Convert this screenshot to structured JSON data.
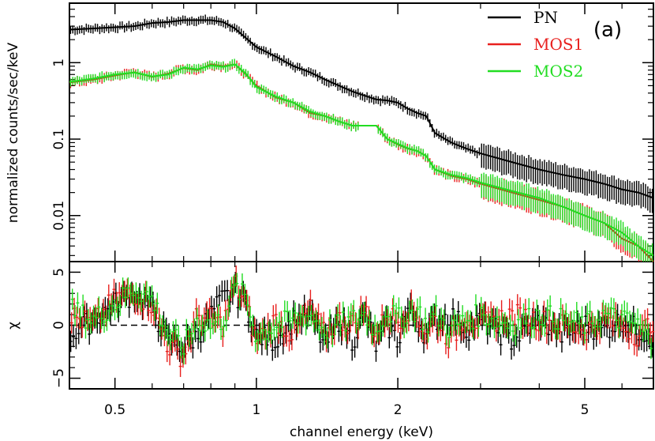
{
  "chart_data": [
    {
      "type": "line",
      "panel_label": "(a)",
      "xlabel": "channel energy (keV)",
      "ylabel": "normalized counts/sec/keV",
      "xscale": "log",
      "yscale": "log",
      "xlim": [
        0.4,
        7.0
      ],
      "ylim": [
        0.0025,
        6.0
      ],
      "yticks": [
        {
          "value": 1,
          "label": "1"
        },
        {
          "value": 0.1,
          "label": "0.1"
        },
        {
          "value": 0.01,
          "label": "0.01"
        }
      ],
      "legend": {
        "position": "top-right",
        "entries": [
          {
            "label": "PN",
            "color": "#000000"
          },
          {
            "label": "MOS1",
            "color": "#e8201e"
          },
          {
            "label": "MOS2",
            "color": "#22dd22"
          }
        ]
      },
      "series": [
        {
          "name": "PN",
          "color": "#000000",
          "x": [
            0.4,
            0.45,
            0.5,
            0.55,
            0.6,
            0.65,
            0.7,
            0.75,
            0.8,
            0.85,
            0.9,
            0.95,
            1.0,
            1.1,
            1.2,
            1.3,
            1.4,
            1.5,
            1.6,
            1.7,
            1.8,
            1.9,
            2.0,
            2.1,
            2.2,
            2.3,
            2.4,
            2.6,
            2.8,
            3.0,
            3.5,
            4.0,
            4.5,
            5.0,
            5.5,
            6.0,
            6.5,
            7.0
          ],
          "y": [
            2.7,
            2.8,
            2.9,
            3.0,
            3.3,
            3.4,
            3.6,
            3.6,
            3.6,
            3.4,
            2.8,
            2.1,
            1.6,
            1.2,
            0.9,
            0.75,
            0.6,
            0.5,
            0.42,
            0.37,
            0.33,
            0.32,
            0.3,
            0.25,
            0.22,
            0.2,
            0.12,
            0.09,
            0.075,
            0.065,
            0.05,
            0.04,
            0.034,
            0.03,
            0.026,
            0.022,
            0.02,
            0.017
          ]
        },
        {
          "name": "MOS1",
          "color": "#e8201e",
          "x": [
            0.4,
            0.45,
            0.5,
            0.55,
            0.6,
            0.65,
            0.7,
            0.75,
            0.8,
            0.85,
            0.9,
            0.95,
            1.0,
            1.1,
            1.2,
            1.3,
            1.4,
            1.5,
            1.6,
            1.7,
            1.8,
            1.9,
            2.0,
            2.1,
            2.2,
            2.3,
            2.4,
            2.6,
            2.8,
            3.0,
            3.5,
            4.0,
            4.5,
            5.0,
            5.5,
            6.0,
            6.5,
            7.0
          ],
          "y": [
            0.55,
            0.6,
            0.68,
            0.75,
            0.65,
            0.72,
            0.85,
            0.8,
            0.95,
            0.9,
            0.95,
            0.7,
            0.5,
            0.35,
            0.3,
            0.22,
            0.2,
            0.17,
            0.15,
            0.15,
            0.15,
            0.1,
            0.085,
            0.075,
            0.07,
            0.06,
            0.04,
            0.033,
            0.03,
            0.026,
            0.02,
            0.016,
            0.013,
            0.01,
            0.008,
            0.005,
            0.004,
            0.0025
          ]
        },
        {
          "name": "MOS2",
          "color": "#22dd22",
          "x": [
            0.4,
            0.45,
            0.5,
            0.55,
            0.6,
            0.65,
            0.7,
            0.75,
            0.8,
            0.85,
            0.9,
            0.95,
            1.0,
            1.1,
            1.2,
            1.3,
            1.4,
            1.5,
            1.6,
            1.7,
            1.8,
            1.9,
            2.0,
            2.1,
            2.2,
            2.3,
            2.4,
            2.6,
            2.8,
            3.0,
            3.5,
            4.0,
            4.5,
            5.0,
            5.5,
            6.0,
            6.5,
            7.0
          ],
          "y": [
            0.56,
            0.62,
            0.7,
            0.74,
            0.66,
            0.7,
            0.86,
            0.82,
            0.92,
            0.88,
            0.95,
            0.72,
            0.48,
            0.36,
            0.3,
            0.23,
            0.2,
            0.17,
            0.15,
            0.15,
            0.15,
            0.1,
            0.087,
            0.076,
            0.07,
            0.06,
            0.04,
            0.034,
            0.031,
            0.027,
            0.021,
            0.017,
            0.013,
            0.01,
            0.008,
            0.006,
            0.004,
            0.003
          ]
        }
      ]
    },
    {
      "type": "line",
      "ylabel": "χ",
      "xlabel": "channel energy (keV)",
      "xscale": "log",
      "xlim": [
        0.4,
        7.0
      ],
      "ylim": [
        -6.0,
        6.0
      ],
      "yticks": [
        {
          "value": 5,
          "label": "5"
        },
        {
          "value": 0,
          "label": "0"
        },
        {
          "value": -5,
          "label": "−5"
        }
      ],
      "xticks": [
        {
          "value": 0.5,
          "label": "0.5"
        },
        {
          "value": 1,
          "label": "1"
        },
        {
          "value": 2,
          "label": "2"
        },
        {
          "value": 5,
          "label": "5"
        }
      ],
      "reference_line": {
        "y": 0,
        "style": "dashed"
      },
      "series": [
        {
          "name": "PN",
          "color": "#000000",
          "x": [
            0.4,
            0.45,
            0.5,
            0.55,
            0.6,
            0.65,
            0.7,
            0.75,
            0.8,
            0.85,
            0.9,
            0.95,
            1.0,
            1.1,
            1.2,
            1.3,
            1.4,
            1.5,
            1.6,
            1.7,
            1.8,
            1.9,
            2.0,
            2.1,
            2.2,
            2.3,
            2.4,
            2.6,
            2.8,
            3.0,
            3.5,
            4.0,
            4.5,
            5.0,
            5.5,
            6.0,
            6.5,
            7.0
          ],
          "y": [
            -1.0,
            0.5,
            2.0,
            3.0,
            1.5,
            -1.5,
            -2.0,
            -1.0,
            1.0,
            2.5,
            3.0,
            2.0,
            -1.0,
            -1.5,
            0.5,
            1.0,
            -2.0,
            0.5,
            -1.5,
            1.0,
            -2.0,
            0.0,
            -1.5,
            1.5,
            0.5,
            -1.0,
            0.5,
            1.0,
            -0.5,
            0.5,
            -1.5,
            0.5,
            -1.0,
            0.0,
            -0.5,
            0.5,
            -0.5,
            -1.0
          ]
        },
        {
          "name": "MOS1",
          "color": "#e8201e",
          "x": [
            0.4,
            0.45,
            0.5,
            0.55,
            0.6,
            0.65,
            0.7,
            0.75,
            0.8,
            0.85,
            0.9,
            0.95,
            1.0,
            1.1,
            1.2,
            1.3,
            1.4,
            1.5,
            1.6,
            1.7,
            1.8,
            1.9,
            2.0,
            2.1,
            2.2,
            2.3,
            2.4,
            2.6,
            2.8,
            3.0,
            3.5,
            4.0,
            4.5,
            5.0,
            5.5,
            6.0,
            6.5,
            7.0
          ],
          "y": [
            1.0,
            0.0,
            2.5,
            3.0,
            2.0,
            -2.0,
            -3.0,
            1.0,
            0.5,
            0.0,
            4.0,
            2.0,
            -1.5,
            0.5,
            -1.0,
            1.5,
            -1.0,
            0.5,
            0.0,
            1.5,
            -1.0,
            1.0,
            0.5,
            1.5,
            1.0,
            -1.0,
            0.5,
            -1.5,
            1.0,
            0.0,
            1.0,
            0.5,
            0.0,
            -0.5,
            0.5,
            0.0,
            -1.0,
            0.5
          ]
        },
        {
          "name": "MOS2",
          "color": "#22dd22",
          "x": [
            0.4,
            0.45,
            0.5,
            0.55,
            0.6,
            0.65,
            0.7,
            0.75,
            0.8,
            0.85,
            0.9,
            0.95,
            1.0,
            1.1,
            1.2,
            1.3,
            1.4,
            1.5,
            1.6,
            1.7,
            1.8,
            1.9,
            2.0,
            2.1,
            2.2,
            2.3,
            2.4,
            2.6,
            2.8,
            3.0,
            3.5,
            4.0,
            4.5,
            5.0,
            5.5,
            6.0,
            6.5,
            7.0
          ],
          "y": [
            1.5,
            0.5,
            2.0,
            3.5,
            2.5,
            -1.0,
            -2.0,
            0.5,
            0.0,
            0.5,
            3.5,
            2.5,
            -1.0,
            0.0,
            0.5,
            1.0,
            -0.5,
            0.0,
            0.5,
            1.0,
            -0.5,
            1.5,
            0.5,
            1.0,
            1.5,
            0.0,
            1.0,
            -0.5,
            0.5,
            1.0,
            0.0,
            1.0,
            0.5,
            0.0,
            1.0,
            0.5,
            0.0,
            -2.0
          ]
        }
      ]
    }
  ]
}
